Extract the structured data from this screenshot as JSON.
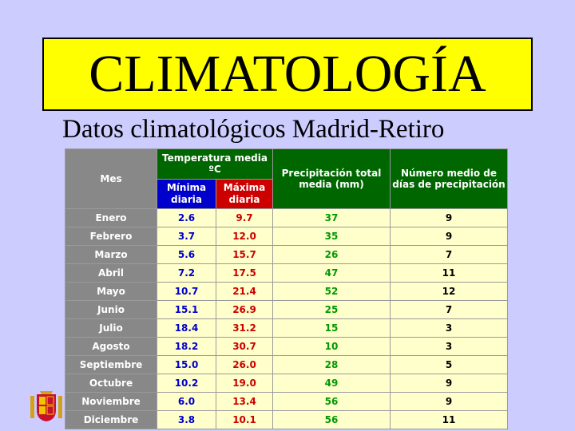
{
  "title": "CLIMATOLOGÍA",
  "subtitle": "Datos climatológicos Madrid-Retiro",
  "table": {
    "headers": {
      "mes": "Mes",
      "temp": "Temperatura media ºC",
      "min": "Mínima diaria",
      "max": "Máxima diaria",
      "prec": "Precipitación total media (mm)",
      "days": "Número medio de días de precipitación"
    },
    "rows": [
      {
        "mes": "Enero",
        "min": "2.6",
        "max": "9.7",
        "prec": "37",
        "days": "9"
      },
      {
        "mes": "Febrero",
        "min": "3.7",
        "max": "12.0",
        "prec": "35",
        "days": "9"
      },
      {
        "mes": "Marzo",
        "min": "5.6",
        "max": "15.7",
        "prec": "26",
        "days": "7"
      },
      {
        "mes": "Abril",
        "min": "7.2",
        "max": "17.5",
        "prec": "47",
        "days": "11"
      },
      {
        "mes": "Mayo",
        "min": "10.7",
        "max": "21.4",
        "prec": "52",
        "days": "12"
      },
      {
        "mes": "Junio",
        "min": "15.1",
        "max": "26.9",
        "prec": "25",
        "days": "7"
      },
      {
        "mes": "Julio",
        "min": "18.4",
        "max": "31.2",
        "prec": "15",
        "days": "3"
      },
      {
        "mes": "Agosto",
        "min": "18.2",
        "max": "30.7",
        "prec": "10",
        "days": "3"
      },
      {
        "mes": "Septiembre",
        "min": "15.0",
        "max": "26.0",
        "prec": "28",
        "days": "5"
      },
      {
        "mes": "Octubre",
        "min": "10.2",
        "max": "19.0",
        "prec": "49",
        "days": "9"
      },
      {
        "mes": "Noviembre",
        "min": "6.0",
        "max": "13.4",
        "prec": "56",
        "days": "9"
      },
      {
        "mes": "Diciembre",
        "min": "3.8",
        "max": "10.1",
        "prec": "56",
        "days": "11"
      }
    ]
  },
  "colors": {
    "background": "#ccccff",
    "title_box": "#ffff00",
    "header_green": "#006600",
    "header_min": "#0000cc",
    "header_max": "#cc0000",
    "month_cell": "#888888",
    "data_cell": "#ffffcc"
  },
  "icons": {
    "logo": "coat-of-arms-icon"
  }
}
